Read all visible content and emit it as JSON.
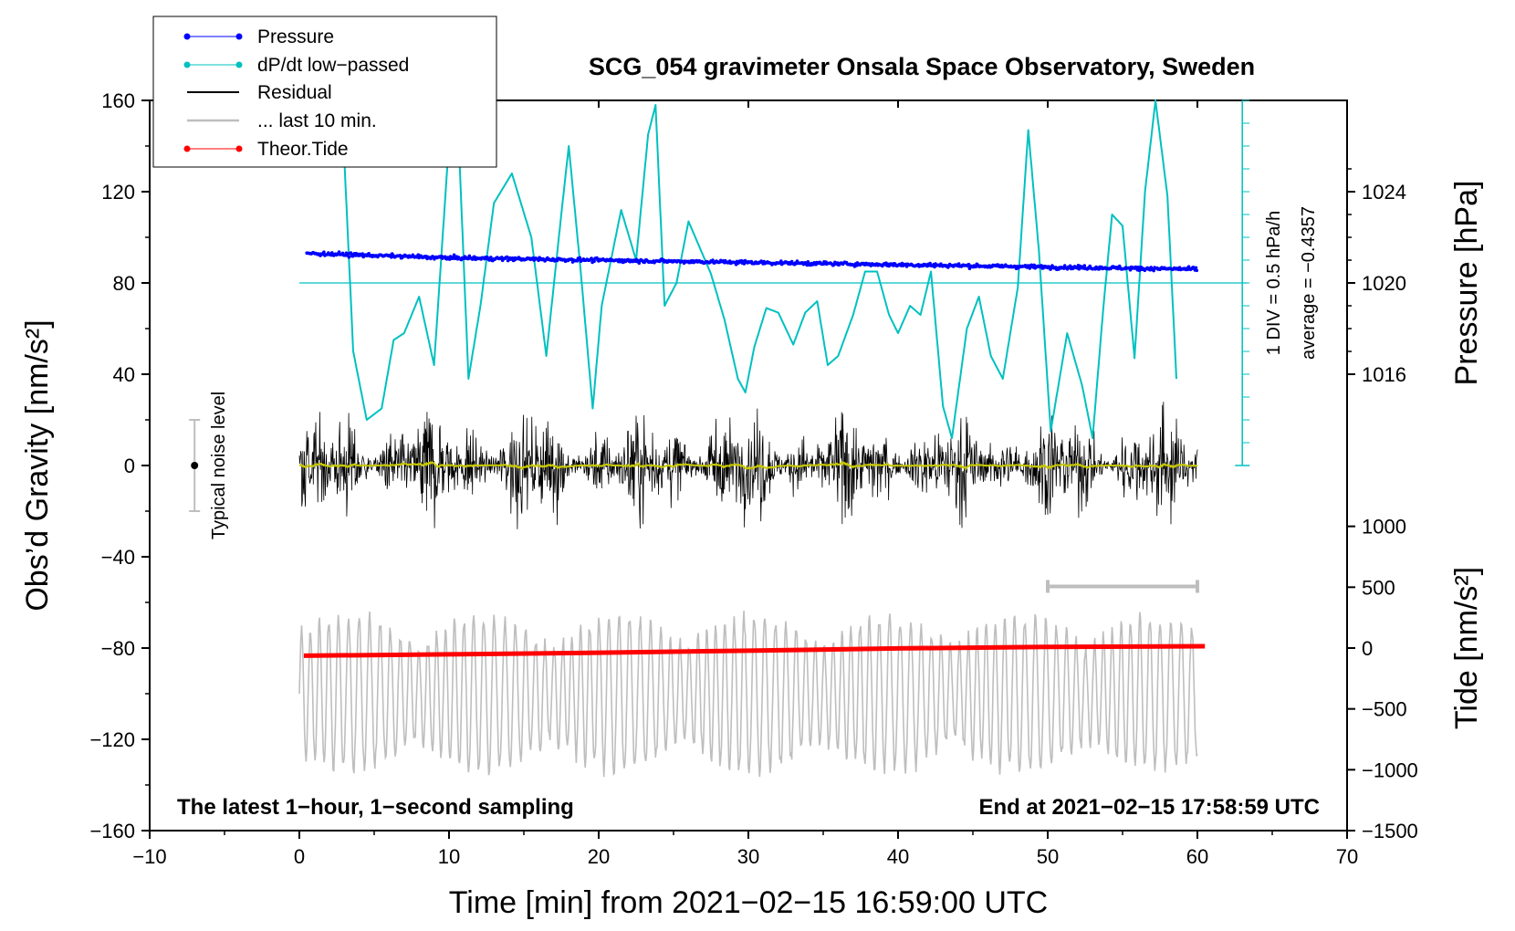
{
  "chart_data": {
    "type": "line",
    "title": "SCG_054 gravimeter Onsala Space Observatory, Sweden",
    "xlabel": "Time [min] from 2021−02−15 16:59:00 UTC",
    "ylabel_left": "Obs’d Gravity [nm/s²]",
    "ylabel_pressure": "Pressure [hPa]",
    "ylabel_tide": "Tide [nm/s²]",
    "xlim": [
      -10,
      70
    ],
    "ylim_gravity": [
      -160,
      160
    ],
    "xticks": [
      "−10",
      "0",
      "10",
      "20",
      "30",
      "40",
      "50",
      "60",
      "70"
    ],
    "xtick_values": [
      -10,
      0,
      10,
      20,
      30,
      40,
      50,
      60,
      70
    ],
    "yticks_gravity": [
      "160",
      "120",
      "80",
      "40",
      "0",
      "−40",
      "−80",
      "−120",
      "−160"
    ],
    "ytick_gravity_values": [
      160,
      120,
      80,
      40,
      0,
      -40,
      -80,
      -120,
      -160
    ],
    "yticks_pressure": [
      "1024",
      "1020",
      "1016"
    ],
    "ytick_pressure_values": [
      1024,
      1020,
      1016
    ],
    "pressure_axis_map": {
      "hPa": [
        1020,
        1024
      ],
      "gravity": [
        80,
        120
      ]
    },
    "yticks_tide": [
      "1000",
      "500",
      "0",
      "−500",
      "−1000",
      "−1500"
    ],
    "ytick_tide_values": [
      1000,
      500,
      0,
      -500,
      -1000,
      -1500
    ],
    "tide_axis_map": {
      "nm_s2": [
        0,
        -1500
      ],
      "gravity": [
        -80,
        -160
      ]
    },
    "legend": [
      {
        "label": "Pressure",
        "color": "#0000ff",
        "marker": true
      },
      {
        "label": "dP/dt low−passed",
        "color": "#00c0c0",
        "marker": true
      },
      {
        "label": "Residual",
        "color": "#000000",
        "marker": false
      },
      {
        "label": "... last 10 min.",
        "color": "#bebebe",
        "marker": false
      },
      {
        "label": "Theor.Tide",
        "color": "#ff0000",
        "marker": true
      }
    ],
    "annotations": {
      "noise_label": "Typical noise level",
      "noise_level": 20,
      "dpdt_scale": "1 DIV = 0.5 hPa/h",
      "dpdt_average": "average = −0.4357",
      "bottom_left": "The latest 1−hour, 1−second sampling",
      "bottom_right": "End at 2021−02−15 17:58:59 UTC"
    },
    "series": [
      {
        "name": "Pressure",
        "unit": "hPa",
        "x": [
          0.5,
          10,
          20,
          30,
          40,
          50,
          60
        ],
        "values": [
          1021.3,
          1021.1,
          1021.0,
          1020.9,
          1020.8,
          1020.7,
          1020.6
        ]
      },
      {
        "name": "dP/dt low-passed",
        "unit": "nm/s2 (plot scale)",
        "x": [
          3,
          3.6,
          4.5,
          5.5,
          6.3,
          7,
          8,
          9,
          10,
          10.6,
          11.3,
          12.1,
          13,
          14.2,
          15.5,
          16.5,
          17.5,
          18,
          18.8,
          19.6,
          20.2,
          21.5,
          22.5,
          23.3,
          23.8,
          24.4,
          25.2,
          26,
          27.5,
          28.4,
          29.3,
          29.8,
          30.4,
          31.2,
          32,
          33,
          33.8,
          34.6,
          35.3,
          36,
          37,
          37.8,
          38.6,
          39.4,
          40,
          40.8,
          41.5,
          42.2,
          43,
          43.6,
          44.6,
          45.4,
          46.2,
          47,
          48,
          48.7,
          49.4,
          50.2,
          51.3,
          52.3,
          53,
          53.7,
          54.3,
          55,
          55.8,
          56.5,
          57.2,
          58,
          58.6
        ],
        "values": [
          135,
          50,
          20,
          25,
          55,
          58,
          74,
          44,
          142,
          150,
          38,
          70,
          115,
          128,
          100,
          48,
          110,
          140,
          85,
          25,
          70,
          112,
          90,
          145,
          158,
          70,
          80,
          107,
          84,
          64,
          38,
          32,
          52,
          69,
          67,
          53,
          67,
          72,
          44,
          48,
          66,
          85,
          85,
          66,
          58,
          70,
          66,
          85,
          26,
          12,
          60,
          74,
          48,
          38,
          78,
          147,
          95,
          15,
          58,
          35,
          12,
          68,
          110,
          105,
          47,
          120,
          160,
          118,
          38
        ]
      },
      {
        "name": "Residual",
        "unit": "nm/s2",
        "x": [
          0,
          60
        ],
        "values": [
          0,
          0
        ],
        "amplitude_envelope": 40
      },
      {
        "name": "... last 10 min.",
        "unit": "nm/s2 (plot scale)",
        "x": [
          0,
          60
        ],
        "values": [
          -100,
          -100
        ],
        "amplitude_envelope": 30
      },
      {
        "name": "Theor.Tide",
        "unit": "nm/s2",
        "x": [
          0.3,
          10,
          20,
          30,
          40,
          50,
          60.5
        ],
        "values": [
          -63,
          -52,
          -38,
          -22,
          -3,
          10,
          15
        ]
      }
    ]
  }
}
